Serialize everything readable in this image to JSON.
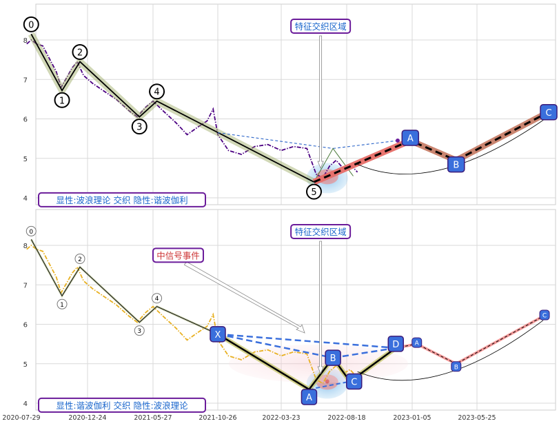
{
  "chart_data": [
    {
      "type": "line",
      "panel": "top",
      "ylim": [
        3.8,
        8.9
      ],
      "yticks": [
        4,
        5,
        6,
        7,
        8
      ],
      "xlim": [
        "2020-07-29",
        "2023-11-30"
      ],
      "grid": true,
      "series": [
        {
          "name": "",
          "role": "price",
          "color": "#4b0082",
          "style": "dash-dot",
          "points": [
            [
              "2020-08-10",
              7.9
            ],
            [
              "2020-08-20",
              8.0
            ],
            [
              "2020-09-01",
              7.9
            ],
            [
              "2020-09-15",
              7.85
            ],
            [
              "2020-10-01",
              7.5
            ],
            [
              "2020-10-15",
              7.2
            ],
            [
              "2020-10-26",
              6.8
            ],
            [
              "2020-11-05",
              7.0
            ],
            [
              "2020-11-20",
              7.3
            ],
            [
              "2020-12-01",
              7.45
            ],
            [
              "2020-12-15",
              7.1
            ],
            [
              "2021-01-05",
              6.9
            ],
            [
              "2021-02-01",
              6.7
            ],
            [
              "2021-03-01",
              6.5
            ],
            [
              "2021-04-01",
              6.2
            ],
            [
              "2021-04-20",
              6.05
            ],
            [
              "2021-05-10",
              6.3
            ],
            [
              "2021-05-27",
              6.45
            ],
            [
              "2021-06-20",
              6.2
            ],
            [
              "2021-07-20",
              5.9
            ],
            [
              "2021-08-15",
              5.6
            ],
            [
              "2021-09-10",
              5.8
            ],
            [
              "2021-10-01",
              5.95
            ],
            [
              "2021-10-15",
              6.25
            ],
            [
              "2021-10-26",
              5.6
            ],
            [
              "2021-11-20",
              5.2
            ],
            [
              "2021-12-20",
              5.1
            ],
            [
              "2022-01-20",
              5.3
            ],
            [
              "2022-02-20",
              5.35
            ],
            [
              "2022-03-23",
              5.2
            ],
            [
              "2022-04-20",
              5.3
            ],
            [
              "2022-05-20",
              5.25
            ],
            [
              "2022-06-10",
              4.6
            ],
            [
              "2022-06-25",
              4.5
            ],
            [
              "2022-07-10",
              4.8
            ],
            [
              "2022-07-25",
              4.95
            ],
            [
              "2022-08-10",
              4.75
            ],
            [
              "2022-08-25",
              4.85
            ],
            [
              "2022-09-10",
              4.65
            ]
          ]
        },
        {
          "name": "",
          "role": "wave",
          "color": "#000000",
          "points": [
            [
              "2020-08-20",
              8.15
            ],
            [
              "2020-10-28",
              6.72
            ],
            [
              "2020-12-07",
              7.45
            ],
            [
              "2021-04-25",
              6.05
            ],
            [
              "2021-06-05",
              6.45
            ],
            [
              "2022-06-05",
              4.4
            ]
          ],
          "labels": [
            "0",
            "1",
            "2",
            "3",
            "4",
            "5"
          ]
        },
        {
          "name": "",
          "role": "projection",
          "color": "#000000",
          "style": "dashed",
          "points": [
            [
              "2022-06-05",
              4.4
            ],
            [
              "2023-01-01",
              5.45
            ],
            [
              "2023-04-10",
              4.95
            ],
            [
              "2023-10-15",
              6.1
            ]
          ],
          "labels": [
            "",
            "A",
            "B",
            "C"
          ]
        }
      ],
      "annotations": [
        {
          "text": "特征交织区域",
          "color": "#1a66cc",
          "border": "#6a1b9a",
          "date": "2022-06-20",
          "value": 8.35
        },
        {
          "text": "显性:波浪理论 交织 隐性:谐波伽利",
          "color": "#1a66cc",
          "border": "#6a1b9a",
          "date": "2020-08-15",
          "value": 3.95
        }
      ]
    },
    {
      "type": "line",
      "panel": "bottom",
      "ylim": [
        3.8,
        8.9
      ],
      "yticks": [
        4,
        5,
        6,
        7,
        8
      ],
      "xlim": [
        "2020-07-29",
        "2023-11-30"
      ],
      "xticks": [
        "2020-07-29",
        "2020-12-24",
        "2021-05-27",
        "2021-10-26",
        "2022-03-23",
        "2022-08-18",
        "2023-01-05",
        "2023-05-25"
      ],
      "grid": true,
      "series": [
        {
          "name": "",
          "role": "price",
          "color": "#e8b020",
          "style": "dash-dot",
          "points": [
            [
              "2020-08-10",
              7.9
            ],
            [
              "2020-08-20",
              8.0
            ],
            [
              "2020-09-01",
              7.9
            ],
            [
              "2020-09-15",
              7.85
            ],
            [
              "2020-10-01",
              7.5
            ],
            [
              "2020-10-15",
              7.2
            ],
            [
              "2020-10-26",
              6.8
            ],
            [
              "2020-11-05",
              7.0
            ],
            [
              "2020-11-20",
              7.3
            ],
            [
              "2020-12-01",
              7.45
            ],
            [
              "2020-12-15",
              7.1
            ],
            [
              "2021-01-05",
              6.9
            ],
            [
              "2021-02-01",
              6.7
            ],
            [
              "2021-03-01",
              6.5
            ],
            [
              "2021-04-01",
              6.2
            ],
            [
              "2021-04-20",
              6.05
            ],
            [
              "2021-05-10",
              6.3
            ],
            [
              "2021-05-27",
              6.45
            ],
            [
              "2021-06-20",
              6.2
            ],
            [
              "2021-07-20",
              5.9
            ],
            [
              "2021-08-15",
              5.6
            ],
            [
              "2021-09-10",
              5.8
            ],
            [
              "2021-10-01",
              5.95
            ],
            [
              "2021-10-15",
              6.25
            ],
            [
              "2021-10-26",
              5.6
            ],
            [
              "2021-11-20",
              5.2
            ],
            [
              "2021-12-20",
              5.1
            ],
            [
              "2022-01-20",
              5.3
            ],
            [
              "2022-02-20",
              5.35
            ],
            [
              "2022-03-23",
              5.2
            ],
            [
              "2022-04-20",
              5.3
            ],
            [
              "2022-05-20",
              5.25
            ],
            [
              "2022-06-10",
              4.6
            ],
            [
              "2022-06-25",
              4.5
            ],
            [
              "2022-07-10",
              4.8
            ],
            [
              "2022-07-25",
              4.95
            ],
            [
              "2022-08-10",
              4.75
            ],
            [
              "2022-08-25",
              4.85
            ],
            [
              "2022-09-10",
              4.65
            ]
          ]
        },
        {
          "name": "",
          "role": "wave",
          "color": "#000000",
          "points": [
            [
              "2020-08-20",
              8.15
            ],
            [
              "2020-10-28",
              6.72
            ],
            [
              "2020-12-07",
              7.45
            ],
            [
              "2021-04-25",
              6.05
            ],
            [
              "2021-06-05",
              6.45
            ],
            [
              "2021-10-26",
              5.75
            ]
          ],
          "labels": [
            "0",
            "1",
            "2",
            "3",
            "4",
            ""
          ]
        },
        {
          "name": "",
          "role": "harmonic",
          "color": "#000000",
          "points": [
            [
              "2021-10-26",
              5.75
            ],
            [
              "2022-05-25",
              4.35
            ],
            [
              "2022-07-18",
              5.15
            ],
            [
              "2022-08-25",
              4.55
            ],
            [
              "2022-12-01",
              5.4
            ]
          ],
          "labels": [
            "X",
            "A",
            "B",
            "C",
            "D"
          ]
        },
        {
          "name": "",
          "role": "projection",
          "color": "#f08080",
          "style": "dashed",
          "points": [
            [
              "2022-12-01",
              5.4
            ],
            [
              "2023-01-15",
              5.5
            ],
            [
              "2023-04-10",
              5.0
            ],
            [
              "2023-10-15",
              6.2
            ]
          ],
          "labels": [
            "",
            "A",
            "B",
            "C"
          ]
        }
      ],
      "annotations": [
        {
          "text": "特征交织区域",
          "color": "#1a66cc",
          "border": "#6a1b9a",
          "date": "2022-06-20",
          "value": 8.35
        },
        {
          "text": "中信号事件",
          "color": "#cc3333",
          "border": "#6a1b9a",
          "date": "2021-07-25",
          "value": 7.75
        },
        {
          "text": "显性:谐波伽利 交织 隐性:波浪理论",
          "color": "#1a66cc",
          "border": "#6a1b9a",
          "date": "2020-08-15",
          "value": 3.95
        }
      ]
    }
  ]
}
